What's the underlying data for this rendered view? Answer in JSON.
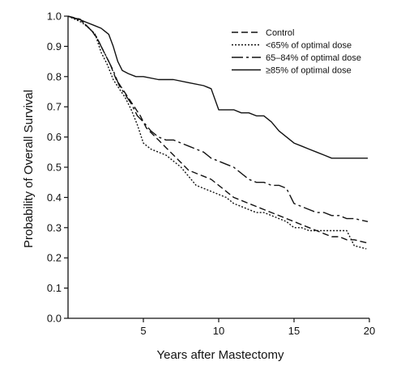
{
  "chart_data": {
    "type": "line",
    "title": "",
    "xlabel": "Years after Mastectomy",
    "ylabel": "Probability of Overall Survival",
    "xlim": [
      0,
      20
    ],
    "ylim": [
      0,
      1
    ],
    "x_ticks": [
      5,
      10,
      15,
      20
    ],
    "x_tick_labels": [
      "5",
      "10",
      "15",
      "20"
    ],
    "y_ticks": [
      0,
      0.1,
      0.2,
      0.3,
      0.4,
      0.5,
      0.6,
      0.7,
      0.8,
      0.9,
      1.0
    ],
    "y_tick_labels": [
      "0.0",
      "0.1",
      "0.2",
      "0.3",
      "0.4",
      "0.5",
      "0.6",
      "0.7",
      "0.8",
      "0.9",
      "1.0"
    ],
    "grid": false,
    "legend_position": "top-right",
    "colors": {
      "line": "#111111",
      "axis": "#111111"
    },
    "series": [
      {
        "name": "Control",
        "dash": "8,4",
        "points": [
          [
            0,
            1.0
          ],
          [
            0.8,
            0.99
          ],
          [
            1.2,
            0.97
          ],
          [
            1.6,
            0.95
          ],
          [
            2.0,
            0.92
          ],
          [
            2.4,
            0.88
          ],
          [
            2.8,
            0.84
          ],
          [
            3.2,
            0.79
          ],
          [
            3.6,
            0.76
          ],
          [
            4.0,
            0.73
          ],
          [
            4.4,
            0.7
          ],
          [
            4.8,
            0.67
          ],
          [
            5.2,
            0.63
          ],
          [
            5.6,
            0.61
          ],
          [
            6.0,
            0.59
          ],
          [
            6.6,
            0.56
          ],
          [
            7.0,
            0.54
          ],
          [
            7.6,
            0.51
          ],
          [
            8.0,
            0.49
          ],
          [
            8.5,
            0.48
          ],
          [
            9.0,
            0.47
          ],
          [
            9.5,
            0.46
          ],
          [
            10.0,
            0.44
          ],
          [
            10.5,
            0.42
          ],
          [
            11.0,
            0.4
          ],
          [
            11.5,
            0.39
          ],
          [
            12.0,
            0.38
          ],
          [
            12.5,
            0.37
          ],
          [
            13.0,
            0.36
          ],
          [
            13.5,
            0.35
          ],
          [
            14.0,
            0.34
          ],
          [
            14.5,
            0.33
          ],
          [
            15.0,
            0.32
          ],
          [
            15.5,
            0.31
          ],
          [
            16.0,
            0.3
          ],
          [
            16.5,
            0.29
          ],
          [
            17.0,
            0.28
          ],
          [
            17.5,
            0.27
          ],
          [
            18.0,
            0.27
          ],
          [
            18.5,
            0.26
          ],
          [
            19.0,
            0.26
          ],
          [
            19.8,
            0.25
          ]
        ]
      },
      {
        "name": "<65% of optimal dose",
        "dash": "2,2",
        "points": [
          [
            0,
            1.0
          ],
          [
            0.9,
            0.98
          ],
          [
            1.4,
            0.96
          ],
          [
            1.8,
            0.94
          ],
          [
            2.2,
            0.88
          ],
          [
            2.6,
            0.84
          ],
          [
            3.0,
            0.79
          ],
          [
            3.4,
            0.76
          ],
          [
            3.8,
            0.73
          ],
          [
            4.2,
            0.69
          ],
          [
            4.6,
            0.64
          ],
          [
            5.0,
            0.58
          ],
          [
            5.5,
            0.56
          ],
          [
            6.0,
            0.55
          ],
          [
            6.5,
            0.54
          ],
          [
            7.0,
            0.52
          ],
          [
            7.5,
            0.5
          ],
          [
            8.0,
            0.47
          ],
          [
            8.5,
            0.44
          ],
          [
            9.0,
            0.43
          ],
          [
            9.5,
            0.42
          ],
          [
            10.0,
            0.41
          ],
          [
            10.5,
            0.4
          ],
          [
            11.0,
            0.38
          ],
          [
            11.5,
            0.37
          ],
          [
            12.0,
            0.36
          ],
          [
            12.5,
            0.35
          ],
          [
            13.0,
            0.35
          ],
          [
            13.5,
            0.34
          ],
          [
            14.0,
            0.33
          ],
          [
            14.5,
            0.32
          ],
          [
            15.0,
            0.3
          ],
          [
            15.5,
            0.3
          ],
          [
            16.0,
            0.29
          ],
          [
            16.5,
            0.29
          ],
          [
            17.0,
            0.29
          ],
          [
            17.5,
            0.29
          ],
          [
            18.0,
            0.29
          ],
          [
            18.5,
            0.29
          ],
          [
            19.0,
            0.24
          ],
          [
            19.8,
            0.23
          ]
        ]
      },
      {
        "name": "65–84% of optimal dose",
        "dash": "14,4,3,4",
        "points": [
          [
            0,
            1.0
          ],
          [
            0.6,
            0.99
          ],
          [
            1.0,
            0.98
          ],
          [
            1.4,
            0.96
          ],
          [
            1.8,
            0.94
          ],
          [
            2.2,
            0.9
          ],
          [
            2.6,
            0.86
          ],
          [
            3.0,
            0.82
          ],
          [
            3.4,
            0.77
          ],
          [
            3.8,
            0.74
          ],
          [
            4.2,
            0.71
          ],
          [
            4.6,
            0.67
          ],
          [
            5.0,
            0.65
          ],
          [
            5.5,
            0.62
          ],
          [
            6.0,
            0.6
          ],
          [
            6.5,
            0.59
          ],
          [
            7.0,
            0.59
          ],
          [
            7.5,
            0.58
          ],
          [
            8.0,
            0.57
          ],
          [
            8.5,
            0.56
          ],
          [
            9.0,
            0.55
          ],
          [
            9.5,
            0.53
          ],
          [
            10.0,
            0.52
          ],
          [
            10.5,
            0.51
          ],
          [
            11.0,
            0.5
          ],
          [
            11.5,
            0.48
          ],
          [
            12.0,
            0.46
          ],
          [
            12.5,
            0.45
          ],
          [
            13.0,
            0.45
          ],
          [
            13.5,
            0.44
          ],
          [
            14.0,
            0.44
          ],
          [
            14.5,
            0.43
          ],
          [
            15.0,
            0.38
          ],
          [
            15.5,
            0.37
          ],
          [
            16.0,
            0.36
          ],
          [
            16.5,
            0.35
          ],
          [
            17.0,
            0.35
          ],
          [
            17.5,
            0.34
          ],
          [
            18.0,
            0.34
          ],
          [
            18.5,
            0.33
          ],
          [
            19.0,
            0.33
          ],
          [
            19.9,
            0.32
          ]
        ]
      },
      {
        "name": "≥85% of optimal dose",
        "dash": "",
        "points": [
          [
            0,
            1.0
          ],
          [
            0.7,
            0.99
          ],
          [
            1.2,
            0.98
          ],
          [
            1.7,
            0.97
          ],
          [
            2.2,
            0.96
          ],
          [
            2.7,
            0.94
          ],
          [
            3.0,
            0.9
          ],
          [
            3.3,
            0.85
          ],
          [
            3.6,
            0.82
          ],
          [
            4.0,
            0.81
          ],
          [
            4.5,
            0.8
          ],
          [
            5.0,
            0.8
          ],
          [
            6.0,
            0.79
          ],
          [
            7.0,
            0.79
          ],
          [
            8.0,
            0.78
          ],
          [
            9.0,
            0.77
          ],
          [
            9.5,
            0.76
          ],
          [
            10.0,
            0.69
          ],
          [
            10.5,
            0.69
          ],
          [
            11.0,
            0.69
          ],
          [
            11.5,
            0.68
          ],
          [
            12.0,
            0.68
          ],
          [
            12.5,
            0.67
          ],
          [
            13.0,
            0.67
          ],
          [
            13.5,
            0.65
          ],
          [
            14.0,
            0.62
          ],
          [
            14.5,
            0.6
          ],
          [
            15.0,
            0.58
          ],
          [
            15.5,
            0.57
          ],
          [
            16.0,
            0.56
          ],
          [
            16.5,
            0.55
          ],
          [
            17.0,
            0.54
          ],
          [
            17.5,
            0.53
          ],
          [
            18.0,
            0.53
          ],
          [
            18.5,
            0.53
          ],
          [
            19.0,
            0.53
          ],
          [
            19.9,
            0.53
          ]
        ]
      }
    ]
  }
}
